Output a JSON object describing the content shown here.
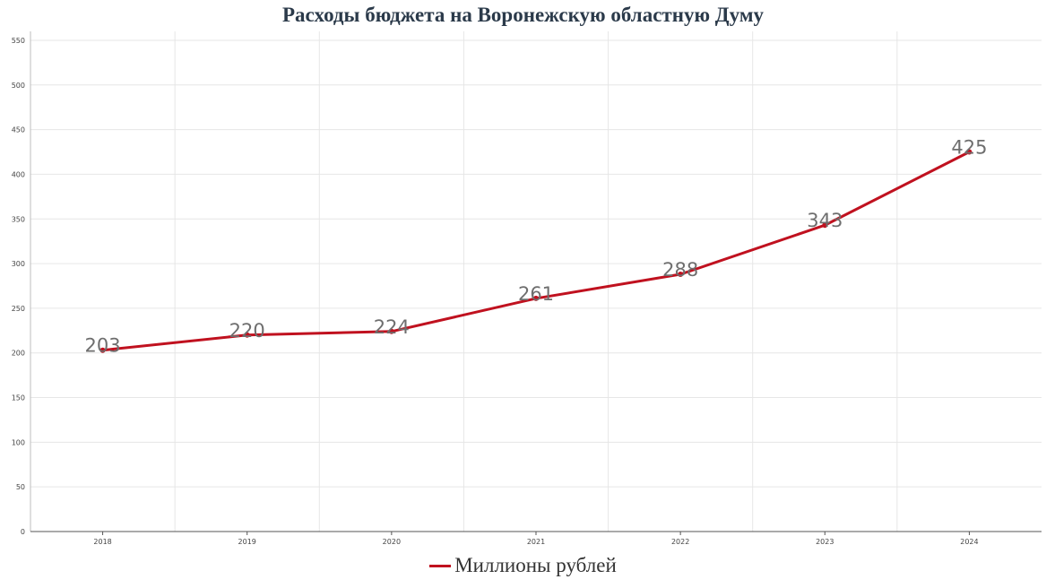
{
  "chart_data": {
    "type": "line",
    "title": "Расходы бюджета на Воронежскую областную Думу",
    "xlabel": "",
    "ylabel": "",
    "categories": [
      "2018",
      "2019",
      "2020",
      "2021",
      "2022",
      "2023",
      "2024"
    ],
    "series": [
      {
        "name": "Миллионы рублей",
        "color": "#c0111f",
        "values": [
          203,
          220,
          224,
          261,
          288,
          343,
          425
        ]
      }
    ],
    "ylim": [
      0,
      560
    ],
    "yticks": [
      0,
      50,
      100,
      150,
      200,
      250,
      300,
      350,
      400,
      450,
      500,
      550
    ],
    "grid": true,
    "legend_position": "bottom-center"
  }
}
